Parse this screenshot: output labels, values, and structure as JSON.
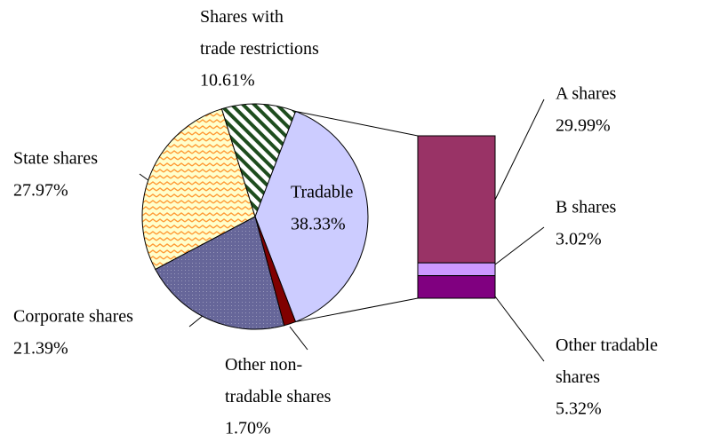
{
  "chart_data": {
    "type": "pie-of-bar",
    "categories": [
      "Tradable",
      "Other non-\ntradable shares",
      "Corporate shares",
      "State shares",
      "Shares with\ntrade restrictions"
    ],
    "values": [
      38.33,
      1.7,
      21.39,
      27.97,
      10.61
    ],
    "value_labels": [
      "38.33%",
      "1.70%",
      "21.39%",
      "27.97%",
      "10.61%"
    ],
    "colors": [
      "#ccccff",
      "#800000",
      "#666699",
      "#ffffcc",
      "#ffffff"
    ],
    "patterns": [
      null,
      null,
      "dots",
      "zigzag",
      "diagonal"
    ],
    "bar": {
      "categories": [
        "A shares",
        "B shares",
        "Other tradable\nshares"
      ],
      "values": [
        29.99,
        3.02,
        5.32
      ],
      "value_labels": [
        "29.99%",
        "3.02%",
        "5.32%"
      ],
      "colors": [
        "#993366",
        "#cc99ff",
        "#800080"
      ]
    }
  }
}
